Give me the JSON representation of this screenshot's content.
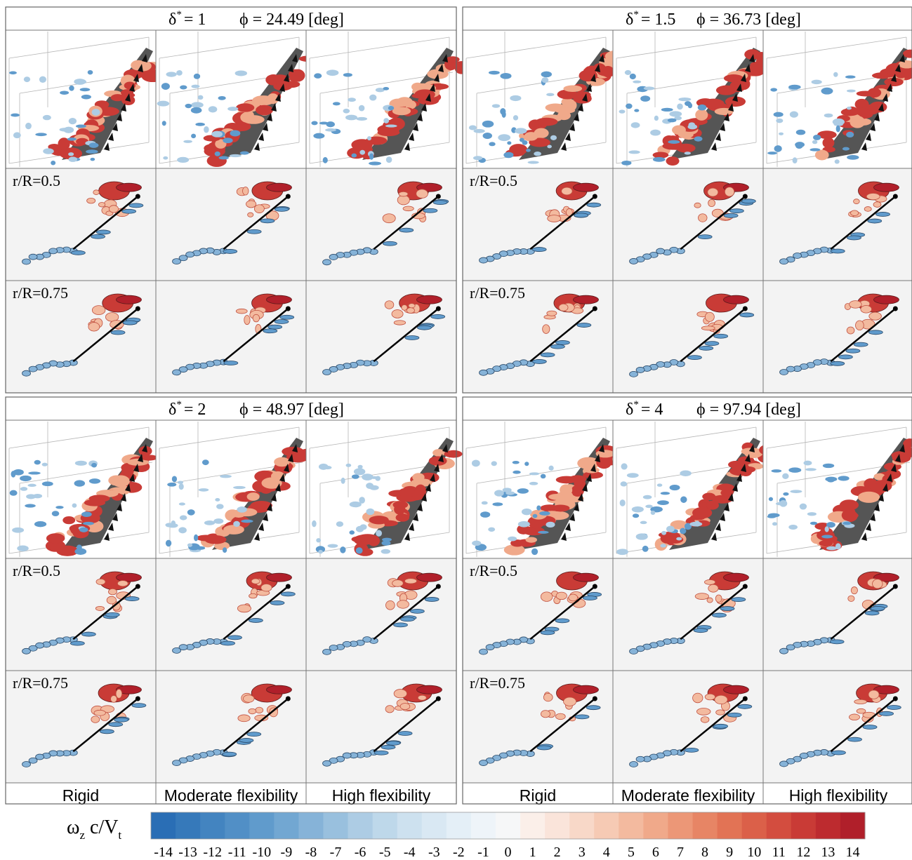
{
  "groups": [
    {
      "delta_symbol": "δ",
      "delta_sup": "*",
      "delta_value": "= 1",
      "phi": "ϕ = 24.49 [deg]",
      "row_labels": [
        "r/R=0.5",
        "r/R=0.75"
      ]
    },
    {
      "delta_symbol": "δ",
      "delta_sup": "*",
      "delta_value": "= 1.5",
      "phi": "ϕ = 36.73 [deg]",
      "row_labels": [
        "r/R=0.5",
        "r/R=0.75"
      ]
    },
    {
      "delta_symbol": "δ",
      "delta_sup": "*",
      "delta_value": "= 2",
      "phi": "ϕ = 48.97 [deg]",
      "row_labels": [
        "r/R=0.5",
        "r/R=0.75"
      ]
    },
    {
      "delta_symbol": "δ",
      "delta_sup": "*",
      "delta_value": "= 4",
      "phi": "ϕ = 97.94 [deg]",
      "row_labels": [
        "r/R=0.5",
        "r/R=0.75"
      ]
    }
  ],
  "column_labels": [
    [
      "Rigid",
      "Moderate flexibility",
      "High flexibility"
    ],
    [
      "Rigid",
      "Moderate flexibility",
      "High flexibility"
    ]
  ],
  "colorbar": {
    "symbol": "ω",
    "symbol_sub": "z",
    "unit": " c/V",
    "unit_sub": "t",
    "ticks": [
      -14,
      -13,
      -12,
      -11,
      -10,
      -9,
      -8,
      -7,
      -6,
      -5,
      -4,
      -3,
      -2,
      -1,
      0,
      1,
      2,
      3,
      4,
      5,
      6,
      7,
      8,
      9,
      10,
      11,
      12,
      13,
      14
    ],
    "colors": [
      "#2a6eb5",
      "#3679ba",
      "#4384c0",
      "#518fc6",
      "#609bcc",
      "#72a7d2",
      "#86b3d8",
      "#99c0de",
      "#adcce4",
      "#bed8ea",
      "#cde1ef",
      "#d9e8f3",
      "#e4eff7",
      "#eef4f9",
      "#f6f7f8",
      "#fbefe9",
      "#fae4da",
      "#f8d8c8",
      "#f6cab4",
      "#f3ba9f",
      "#f0a98a",
      "#ec9777",
      "#e78565",
      "#e27355",
      "#db6049",
      "#d34d3f",
      "#c93b36",
      "#bd2b2f",
      "#b01f2a"
    ]
  }
}
